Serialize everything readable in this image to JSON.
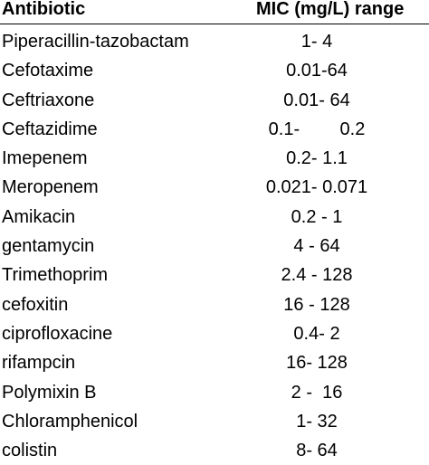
{
  "table": {
    "headers": {
      "antibiotic": "Antibiotic",
      "mic_range": "MIC (mg/L) range"
    },
    "rows": [
      {
        "antibiotic": "Piperacillin-tazobactam",
        "range": "1- 4"
      },
      {
        "antibiotic": "Cefotaxime",
        "range": "0.01-64"
      },
      {
        "antibiotic": "Ceftriaxone",
        "range": "0.01- 64"
      },
      {
        "antibiotic": "Ceftazidime",
        "range": "0.1-        0.2"
      },
      {
        "antibiotic": "Imepenem",
        "range": "0.2- 1.1"
      },
      {
        "antibiotic": "Meropenem",
        "range": "0.021- 0.071"
      },
      {
        "antibiotic": "Amikacin",
        "range": "0.2 - 1"
      },
      {
        "antibiotic": "gentamycin",
        "range": "4 - 64"
      },
      {
        "antibiotic": "Trimethoprim",
        "range": "2.4 - 128"
      },
      {
        "antibiotic": "cefoxitin",
        "range": "16 - 128"
      },
      {
        "antibiotic": "ciprofloxacine",
        "range": "0.4- 2"
      },
      {
        "antibiotic": "rifampcin",
        "range": "16- 128"
      },
      {
        "antibiotic": "Polymixin B",
        "range": "2 -  16"
      },
      {
        "antibiotic": "Chloramphenicol",
        "range": "1- 32"
      },
      {
        "antibiotic": "colistin",
        "range": "8- 64"
      }
    ]
  }
}
